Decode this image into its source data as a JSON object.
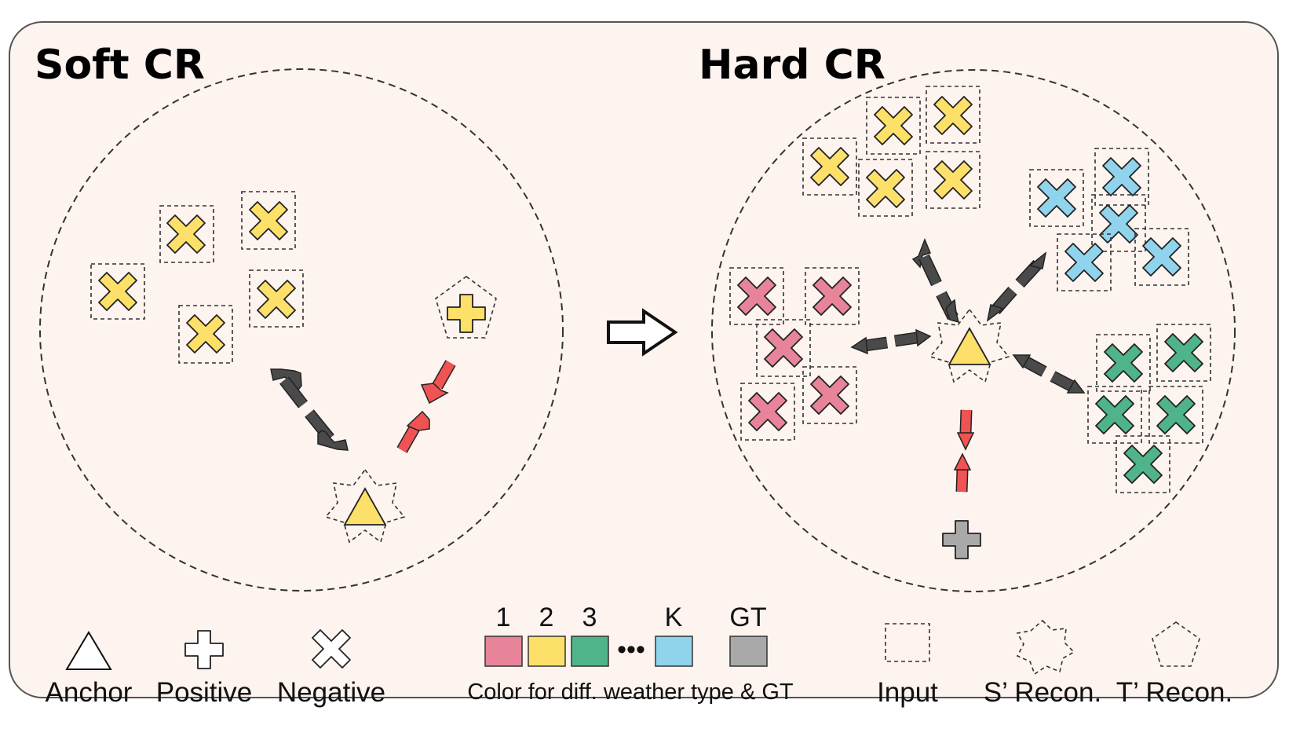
{
  "panels": {
    "soft": {
      "title": "Soft CR"
    },
    "hard": {
      "title": "Hard CR"
    }
  },
  "legend": {
    "anchor": "Anchor",
    "positive": "Positive",
    "negative": "Negative",
    "colors_caption": "Color for diff. weather type & GT",
    "color_keys": [
      "1",
      "2",
      "3",
      "K",
      "GT"
    ],
    "ellipsis": "•••",
    "input": "Input",
    "s_recon": "S’ Recon.",
    "t_recon": "T’ Recon."
  },
  "colors": {
    "panel_bg": "#fdf3ef",
    "weather_1": "#e8849a",
    "weather_2": "#fde06a",
    "weather_3": "#4fb48a",
    "weather_K": "#8fd4ec",
    "gt": "#a9a9a9",
    "pull_arrow": "#f05353",
    "push_arrow": "#4a4a4a"
  },
  "icons": {
    "anchor": "triangle-icon",
    "positive": "plus-icon",
    "negative": "x-cross-icon",
    "input": "dashed-square-icon",
    "s_recon": "dashed-star-icon",
    "t_recon": "dashed-pentagon-icon",
    "transition": "hollow-right-arrow-icon"
  }
}
